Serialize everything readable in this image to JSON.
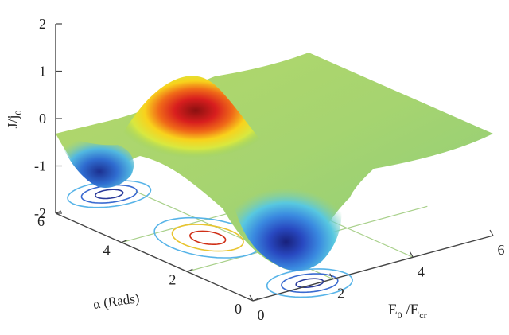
{
  "chart_data": {
    "type": "surface",
    "title": "",
    "zlabel": {
      "main": "J/j",
      "sub": "0"
    },
    "xlabel": {
      "base1": "E",
      "sub1": "0",
      "mid": " /E",
      "sub2": "cr"
    },
    "ylabel": "α (Rads)",
    "z_ticks": [
      "2",
      "1",
      "0",
      "-1",
      "-2"
    ],
    "y_ticks": [
      "6",
      "4",
      "2",
      "0"
    ],
    "x_ticks": [
      "0",
      "2",
      "4",
      "6"
    ],
    "xlim": [
      0,
      6
    ],
    "ylim": [
      0,
      6
    ],
    "zlim": [
      -2,
      2
    ],
    "colormap": "jet",
    "projected_contours": true,
    "surface_features": [
      {
        "name": "peak",
        "x": 1.5,
        "y": 4.7,
        "z": 1.0
      },
      {
        "name": "trough",
        "x": 1.5,
        "y": 1.6,
        "z": -1.45
      },
      {
        "name": "trough-edge",
        "x": 0.0,
        "y": 6.0,
        "z": -1.2
      }
    ],
    "plateau_z": -0.1
  },
  "colors": {
    "axis": "#444444",
    "grid": "#a8d08a",
    "contour_outer": "#58b4e8",
    "contour_mid": "#e8c430",
    "contour_inner": "#d03018"
  }
}
